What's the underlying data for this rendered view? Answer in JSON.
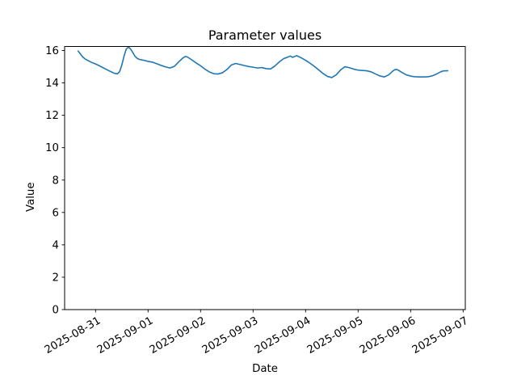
{
  "figure": {
    "background": "#ffffff"
  },
  "chart_data": {
    "type": "line",
    "title": "Parameter values",
    "xlabel": "Date",
    "ylabel": "Value",
    "line_color": "#1f77b4",
    "grid": false,
    "legend": null,
    "ylim": [
      0,
      16.25
    ],
    "yticks": [
      0,
      2,
      4,
      6,
      8,
      10,
      12,
      14,
      16
    ],
    "xtick_labels": [
      "2025-08-31",
      "2025-09-01",
      "2025-09-02",
      "2025-09-03",
      "2025-09-04",
      "2025-09-05",
      "2025-09-06",
      "2025-09-07"
    ],
    "xtick_rotation_deg": 30,
    "series": [
      {
        "name": "parameter",
        "points": [
          [
            "2025-08-30 16:00",
            15.97
          ],
          [
            "2025-08-30 17:00",
            15.8
          ],
          [
            "2025-08-30 18:00",
            15.62
          ],
          [
            "2025-08-30 19:00",
            15.5
          ],
          [
            "2025-08-30 20:00",
            15.42
          ],
          [
            "2025-08-30 22:00",
            15.28
          ],
          [
            "2025-08-31 00:00",
            15.17
          ],
          [
            "2025-08-31 02:00",
            15.04
          ],
          [
            "2025-08-31 04:00",
            14.9
          ],
          [
            "2025-08-31 06:00",
            14.76
          ],
          [
            "2025-08-31 08:00",
            14.63
          ],
          [
            "2025-08-31 09:00",
            14.58
          ],
          [
            "2025-08-31 10:00",
            14.56
          ],
          [
            "2025-08-31 11:00",
            14.7
          ],
          [
            "2025-08-31 12:00",
            15.1
          ],
          [
            "2025-08-31 13:00",
            15.65
          ],
          [
            "2025-08-31 14:00",
            16.08
          ],
          [
            "2025-08-31 15:00",
            16.22
          ],
          [
            "2025-08-31 16:00",
            16.1
          ],
          [
            "2025-08-31 17:00",
            15.88
          ],
          [
            "2025-08-31 18:00",
            15.65
          ],
          [
            "2025-08-31 19:00",
            15.52
          ],
          [
            "2025-08-31 20:00",
            15.45
          ],
          [
            "2025-08-31 22:00",
            15.4
          ],
          [
            "2025-09-01 00:00",
            15.33
          ],
          [
            "2025-09-01 02:00",
            15.28
          ],
          [
            "2025-09-01 04:00",
            15.18
          ],
          [
            "2025-09-01 06:00",
            15.08
          ],
          [
            "2025-09-01 08:00",
            14.99
          ],
          [
            "2025-09-01 10:00",
            14.92
          ],
          [
            "2025-09-01 12:00",
            15.02
          ],
          [
            "2025-09-01 14:00",
            15.3
          ],
          [
            "2025-09-01 16:00",
            15.55
          ],
          [
            "2025-09-01 17:00",
            15.63
          ],
          [
            "2025-09-01 18:00",
            15.6
          ],
          [
            "2025-09-01 20:00",
            15.42
          ],
          [
            "2025-09-01 22:00",
            15.23
          ],
          [
            "2025-09-02 00:00",
            15.06
          ],
          [
            "2025-09-02 02:00",
            14.85
          ],
          [
            "2025-09-02 04:00",
            14.68
          ],
          [
            "2025-09-02 06:00",
            14.57
          ],
          [
            "2025-09-02 08:00",
            14.55
          ],
          [
            "2025-09-02 10:00",
            14.63
          ],
          [
            "2025-09-02 12:00",
            14.82
          ],
          [
            "2025-09-02 14:00",
            15.1
          ],
          [
            "2025-09-02 16:00",
            15.2
          ],
          [
            "2025-09-02 18:00",
            15.14
          ],
          [
            "2025-09-02 20:00",
            15.07
          ],
          [
            "2025-09-02 22:00",
            15.01
          ],
          [
            "2025-09-03 00:00",
            14.97
          ],
          [
            "2025-09-03 02:00",
            14.92
          ],
          [
            "2025-09-03 04:00",
            14.95
          ],
          [
            "2025-09-03 06:00",
            14.88
          ],
          [
            "2025-09-03 08:00",
            14.86
          ],
          [
            "2025-09-03 10:00",
            15.05
          ],
          [
            "2025-09-03 12:00",
            15.3
          ],
          [
            "2025-09-03 14:00",
            15.5
          ],
          [
            "2025-09-03 16:00",
            15.6
          ],
          [
            "2025-09-03 17:00",
            15.66
          ],
          [
            "2025-09-03 18:00",
            15.58
          ],
          [
            "2025-09-03 20:00",
            15.68
          ],
          [
            "2025-09-03 22:00",
            15.55
          ],
          [
            "2025-09-04 00:00",
            15.4
          ],
          [
            "2025-09-04 02:00",
            15.22
          ],
          [
            "2025-09-04 04:00",
            15.02
          ],
          [
            "2025-09-04 06:00",
            14.8
          ],
          [
            "2025-09-04 08:00",
            14.58
          ],
          [
            "2025-09-04 10:00",
            14.4
          ],
          [
            "2025-09-04 12:00",
            14.33
          ],
          [
            "2025-09-04 14:00",
            14.5
          ],
          [
            "2025-09-04 16:00",
            14.8
          ],
          [
            "2025-09-04 18:00",
            15.0
          ],
          [
            "2025-09-04 20:00",
            14.94
          ],
          [
            "2025-09-04 22:00",
            14.85
          ],
          [
            "2025-09-05 00:00",
            14.79
          ],
          [
            "2025-09-05 02:00",
            14.77
          ],
          [
            "2025-09-05 04:00",
            14.75
          ],
          [
            "2025-09-05 06:00",
            14.68
          ],
          [
            "2025-09-05 08:00",
            14.55
          ],
          [
            "2025-09-05 10:00",
            14.43
          ],
          [
            "2025-09-05 12:00",
            14.37
          ],
          [
            "2025-09-05 14:00",
            14.5
          ],
          [
            "2025-09-05 16:00",
            14.75
          ],
          [
            "2025-09-05 17:00",
            14.83
          ],
          [
            "2025-09-05 18:00",
            14.82
          ],
          [
            "2025-09-05 20:00",
            14.65
          ],
          [
            "2025-09-05 22:00",
            14.5
          ],
          [
            "2025-09-06 00:00",
            14.42
          ],
          [
            "2025-09-06 02:00",
            14.38
          ],
          [
            "2025-09-06 04:00",
            14.37
          ],
          [
            "2025-09-06 06:00",
            14.37
          ],
          [
            "2025-09-06 08:00",
            14.38
          ],
          [
            "2025-09-06 10:00",
            14.44
          ],
          [
            "2025-09-06 12:00",
            14.56
          ],
          [
            "2025-09-06 14:00",
            14.7
          ],
          [
            "2025-09-06 15:00",
            14.74
          ],
          [
            "2025-09-06 16:00",
            14.75
          ],
          [
            "2025-09-06 17:00",
            14.75
          ]
        ]
      }
    ]
  }
}
